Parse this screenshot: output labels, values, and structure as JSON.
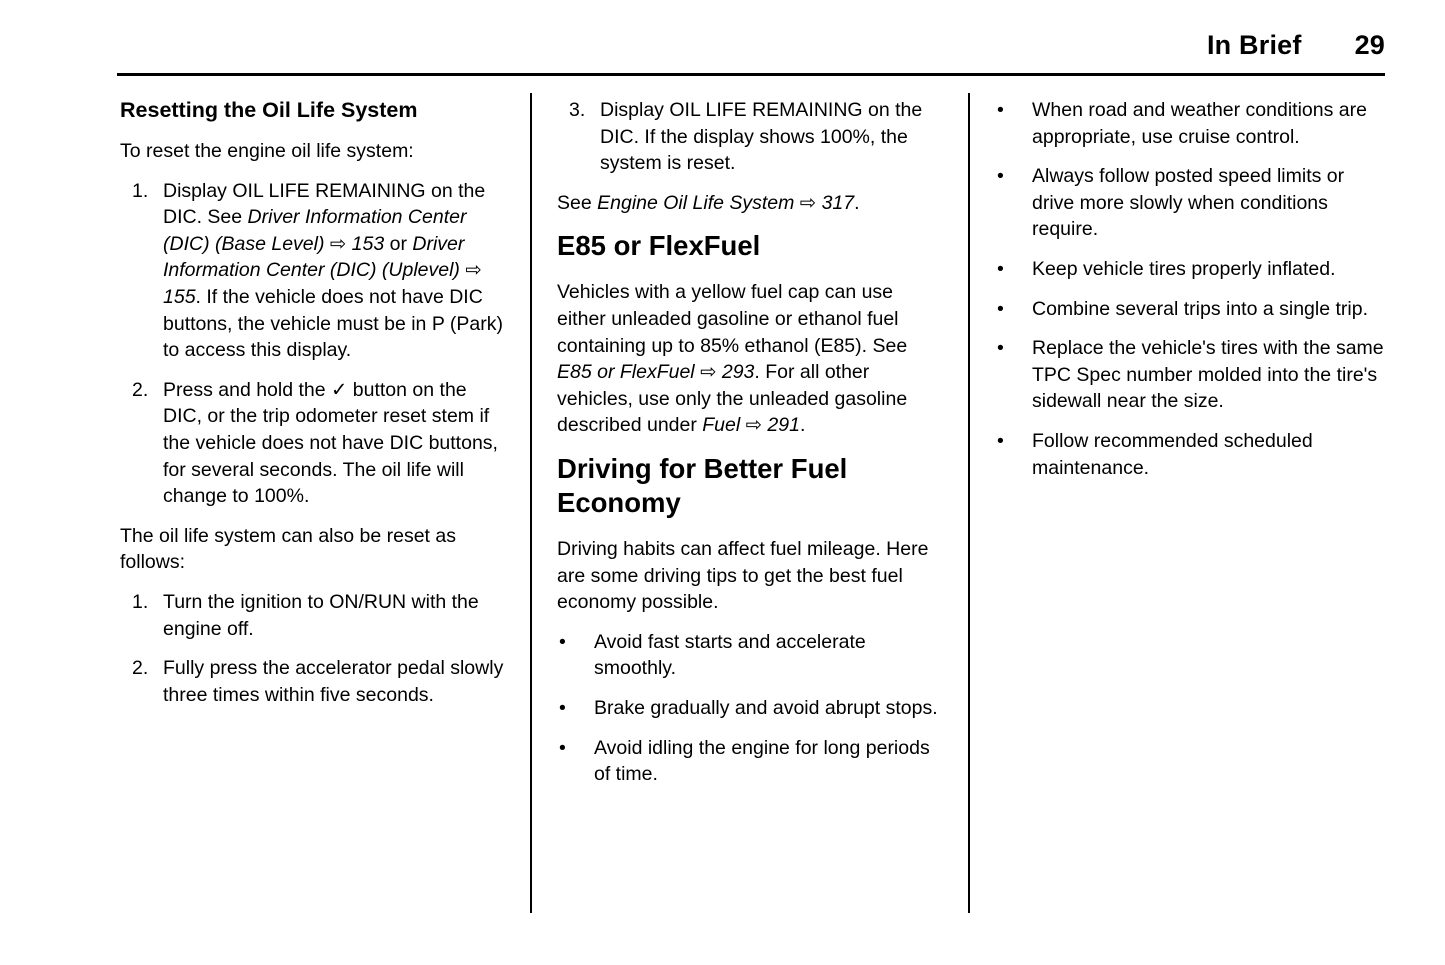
{
  "header": {
    "title": "In Brief",
    "page_number": "29"
  },
  "glyphs": {
    "bullet": "•"
  },
  "col1": {
    "heading": "Resetting the Oil Life System",
    "intro": "To reset the engine oil life system:",
    "steps1": [
      {
        "num": "1.",
        "segments": [
          {
            "t": "Display OIL LIFE REMAINING on the DIC. See "
          },
          {
            "t": "Driver Information Center (DIC) (Base Level)",
            "i": true
          },
          {
            "t": " ⇨ "
          },
          {
            "t": "153",
            "i": true
          },
          {
            "t": " or "
          },
          {
            "t": "Driver Information Center (DIC) (Uplevel)",
            "i": true
          },
          {
            "t": " ⇨ "
          },
          {
            "t": "155",
            "i": true
          },
          {
            "t": ". If the vehicle does not have DIC buttons, the vehicle must be in P (Park) to access this display."
          }
        ]
      },
      {
        "num": "2.",
        "segments": [
          {
            "t": "Press and hold the ✓ button on the DIC, or the trip odometer reset stem if the vehicle does not have DIC buttons, for several seconds. The oil life will change to 100%."
          }
        ]
      }
    ],
    "also_para": "The oil life system can also be reset as follows:",
    "steps2": [
      {
        "num": "1.",
        "segments": [
          {
            "t": "Turn the ignition to ON/RUN with the engine off."
          }
        ]
      },
      {
        "num": "2.",
        "segments": [
          {
            "t": "Fully press the accelerator pedal slowly three times within five seconds."
          }
        ]
      }
    ]
  },
  "col2": {
    "steps_cont": [
      {
        "num": "3.",
        "segments": [
          {
            "t": "Display OIL LIFE REMAINING on the DIC. If the display shows 100%, the system is reset."
          }
        ]
      }
    ],
    "see_para": {
      "segments": [
        {
          "t": "See "
        },
        {
          "t": "Engine Oil Life System",
          "i": true
        },
        {
          "t": " ⇨ "
        },
        {
          "t": "317",
          "i": true
        },
        {
          "t": "."
        }
      ]
    },
    "e85_heading": "E85 or FlexFuel",
    "e85_para": {
      "segments": [
        {
          "t": "Vehicles with a yellow fuel cap can use either unleaded gasoline or ethanol fuel containing up to 85% ethanol (E85). See "
        },
        {
          "t": "E85 or FlexFuel",
          "i": true
        },
        {
          "t": " ⇨ "
        },
        {
          "t": "293",
          "i": true
        },
        {
          "t": ". For all other vehicles, use only the unleaded gasoline described under "
        },
        {
          "t": "Fuel",
          "i": true
        },
        {
          "t": " ⇨ "
        },
        {
          "t": "291",
          "i": true
        },
        {
          "t": "."
        }
      ]
    },
    "economy_heading": "Driving for Better Fuel Economy",
    "economy_para": "Driving habits can affect fuel mileage. Here are some driving tips to get the best fuel economy possible.",
    "economy_bullets": [
      "Avoid fast starts and accelerate smoothly.",
      "Brake gradually and avoid abrupt stops.",
      "Avoid idling the engine for long periods of time."
    ]
  },
  "col3": {
    "bullets": [
      "When road and weather conditions are appropriate, use cruise control.",
      "Always follow posted speed limits or drive more slowly when conditions require.",
      "Keep vehicle tires properly inflated.",
      "Combine several trips into a single trip.",
      "Replace the vehicle's tires with the same TPC Spec number molded into the tire's sidewall near the size.",
      "Follow recommended scheduled maintenance."
    ]
  }
}
